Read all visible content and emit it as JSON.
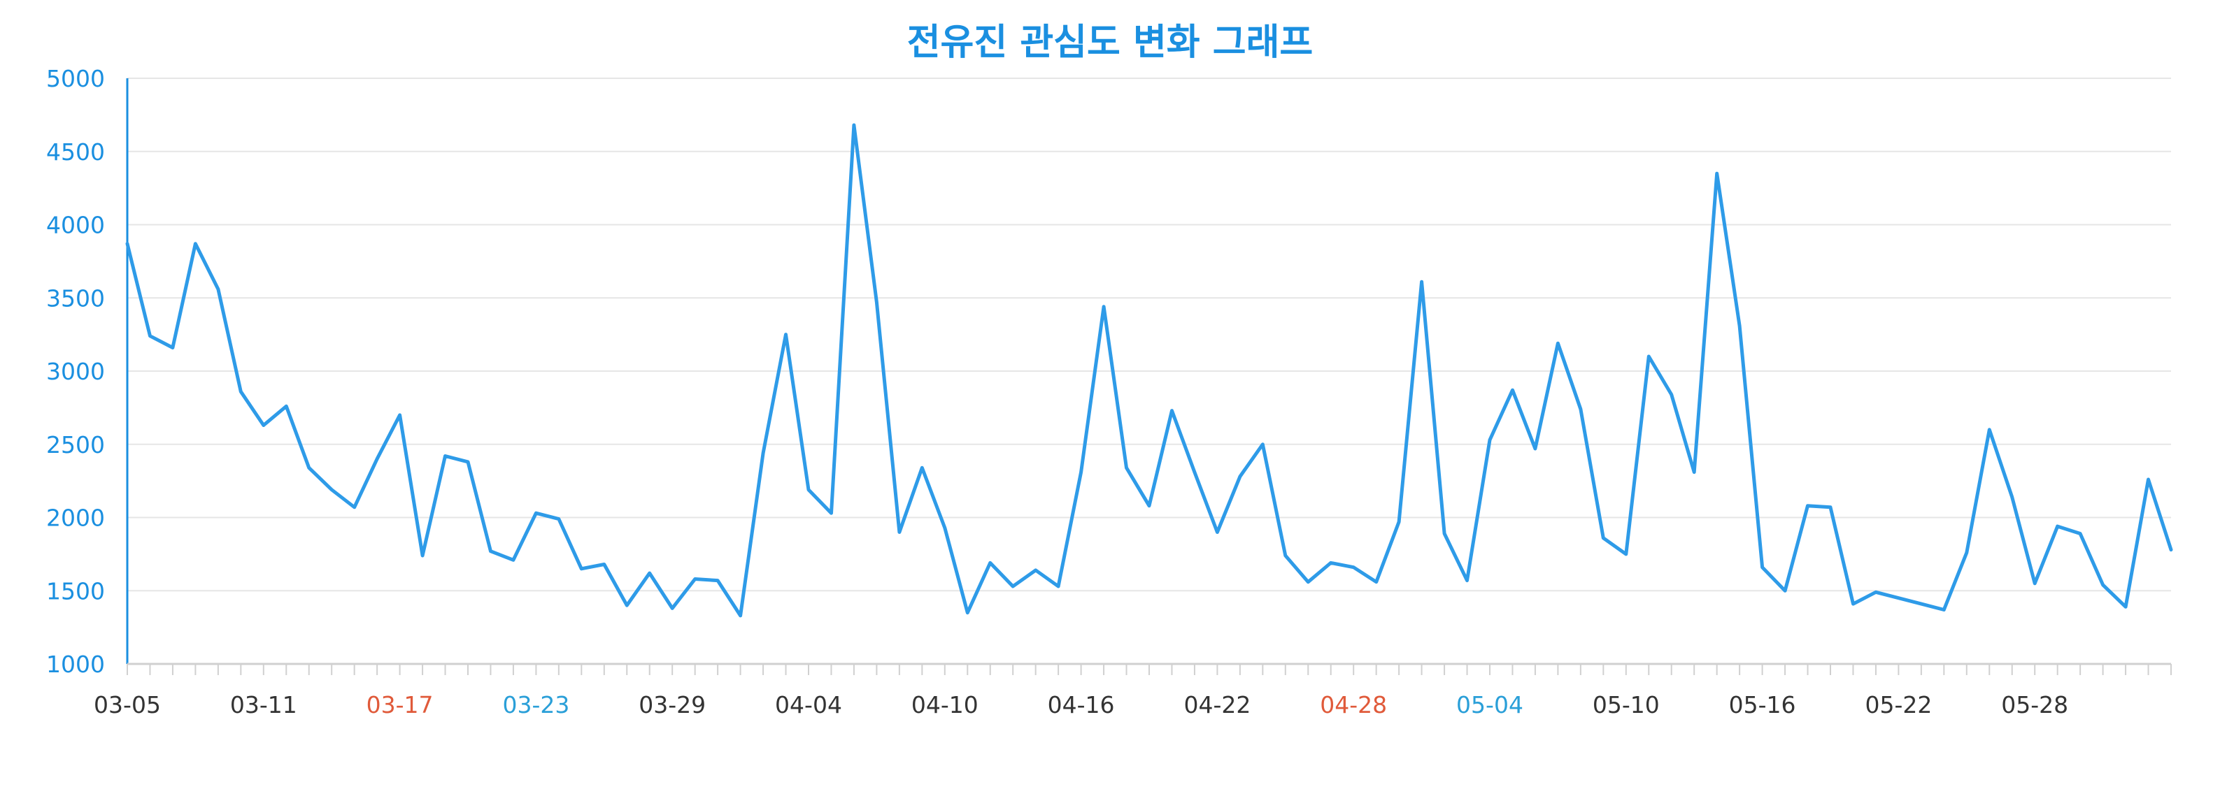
{
  "chart_data": {
    "type": "line",
    "title": "전유진 관심도 변화 그래프",
    "xlabel": "",
    "ylabel": "",
    "ylim": [
      1000,
      5000
    ],
    "yticks": [
      1000,
      1500,
      2000,
      2500,
      3000,
      3500,
      4000,
      4500,
      5000
    ],
    "x_start": "03-05",
    "x_end": "06-02",
    "x_tick_labels": [
      {
        "label": "03-05",
        "color": "#333333"
      },
      {
        "label": "03-11",
        "color": "#333333"
      },
      {
        "label": "03-17",
        "color": "#e05a3a"
      },
      {
        "label": "03-23",
        "color": "#2a9fd8"
      },
      {
        "label": "03-29",
        "color": "#333333"
      },
      {
        "label": "04-04",
        "color": "#333333"
      },
      {
        "label": "04-10",
        "color": "#333333"
      },
      {
        "label": "04-16",
        "color": "#333333"
      },
      {
        "label": "04-22",
        "color": "#333333"
      },
      {
        "label": "04-28",
        "color": "#e05a3a"
      },
      {
        "label": "05-04",
        "color": "#2a9fd8"
      },
      {
        "label": "05-10",
        "color": "#333333"
      },
      {
        "label": "05-16",
        "color": "#333333"
      },
      {
        "label": "05-22",
        "color": "#333333"
      },
      {
        "label": "05-28",
        "color": "#333333"
      }
    ],
    "series": [
      {
        "values": [
          3870,
          3240,
          3160,
          3870,
          3560,
          2860,
          2630,
          2760,
          2340,
          2190,
          2070,
          2400,
          2700,
          1740,
          2420,
          2380,
          1770,
          1710,
          2030,
          1990,
          1650,
          1680,
          1400,
          1620,
          1380,
          1580,
          1570,
          1330,
          2440,
          3250,
          2190,
          2030,
          4680,
          3470,
          1900,
          2340,
          1930,
          1350,
          1690,
          1530,
          1640,
          1530,
          2310,
          3440,
          2340,
          2080,
          2730,
          2310,
          1900,
          2280,
          2500,
          1740,
          1560,
          1690,
          1660,
          1560,
          1970,
          3610,
          1890,
          1570,
          2530,
          2870,
          2470,
          3190,
          2740,
          1860,
          1750,
          3100,
          2840,
          2310,
          4350,
          3310,
          1660,
          1500,
          2080,
          2070,
          1410,
          1490,
          1450,
          1410,
          1370,
          1760,
          2600,
          2140,
          1550,
          1940,
          1890,
          1540,
          1390,
          2260,
          1780
        ]
      }
    ],
    "grid": true,
    "legend": "none",
    "colors": {
      "line": "#2e9be8",
      "axis": "#1a8fe0",
      "title": "#1a8fe0",
      "y_tick_text": "#1a8fe0",
      "grid": "#e6e6e6"
    }
  }
}
